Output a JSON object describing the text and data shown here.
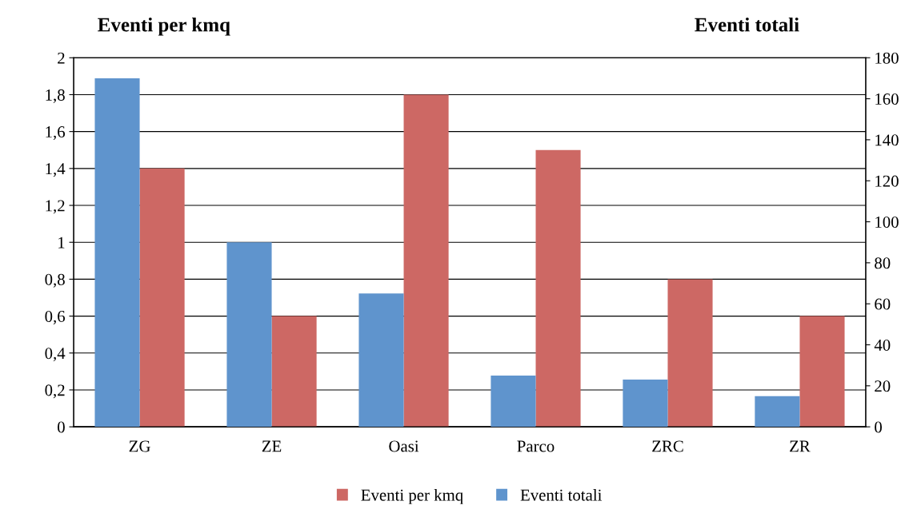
{
  "chart_data": {
    "type": "bar",
    "ylabel": "Eventi per kmq",
    "y2label": "Eventi totali",
    "categories": [
      "ZG",
      "ZE",
      "Oasi",
      "Parco",
      "ZRC",
      "ZR"
    ],
    "series": [
      {
        "name": "Eventi per kmq",
        "color": "#cd6864",
        "values": [
          1.4,
          0.6,
          1.8,
          1.5,
          0.8,
          0.6
        ]
      },
      {
        "name": "Eventi totali",
        "color": "#5f94cd",
        "axis": "y2",
        "values": [
          170,
          90,
          65,
          25,
          23,
          15
        ]
      }
    ],
    "ylim": [
      0,
      2
    ],
    "yticks": [
      0,
      {
        "value": 0.2,
        "label": "0,2"
      },
      {
        "value": 0.4,
        "label": "0,4"
      },
      {
        "value": 0.6,
        "label": "0,6"
      },
      {
        "value": 0.8,
        "label": "0,8"
      },
      1,
      {
        "value": 1.2,
        "label": "1,2"
      },
      {
        "value": 1.4,
        "label": "1,4"
      },
      {
        "value": 1.6,
        "label": "1,6"
      },
      {
        "value": 1.8,
        "label": "1,8"
      },
      2
    ],
    "y2lim": [
      0,
      180
    ],
    "y2ticks": [
      0,
      20,
      40,
      60,
      80,
      100,
      120,
      140,
      160,
      180
    ],
    "grid": "y",
    "legend": "bottom"
  }
}
